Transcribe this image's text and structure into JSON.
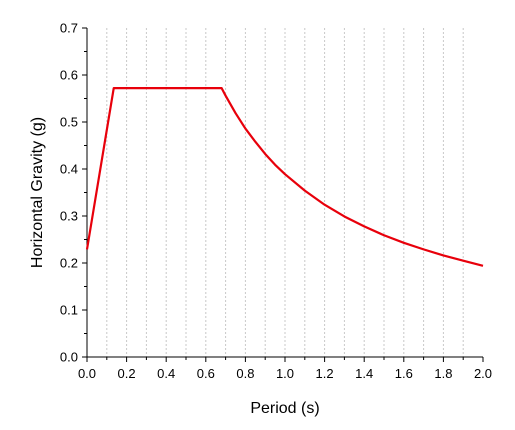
{
  "chart_data": {
    "type": "line",
    "xlabel": "Period (s)",
    "ylabel": "Horizontal Gravity (g)",
    "xlim": [
      0,
      2.0
    ],
    "ylim": [
      0,
      0.7
    ],
    "x_ticks": [
      "0.0",
      "0.2",
      "0.4",
      "0.6",
      "0.8",
      "1.0",
      "1.2",
      "1.4",
      "1.6",
      "1.8",
      "2.0"
    ],
    "y_ticks": [
      "0.0",
      "0.1",
      "0.2",
      "0.3",
      "0.4",
      "0.5",
      "0.6",
      "0.7"
    ],
    "grid": "vertical dotted at minor x ticks",
    "series": [
      {
        "color": "#e8000b",
        "x": [
          0.0,
          0.135,
          0.68,
          0.7,
          0.75,
          0.8,
          0.85,
          0.9,
          0.95,
          1.0,
          1.1,
          1.2,
          1.3,
          1.4,
          1.5,
          1.6,
          1.7,
          1.8,
          1.9,
          2.0
        ],
        "y": [
          0.229,
          0.572,
          0.572,
          0.556,
          0.519,
          0.486,
          0.458,
          0.432,
          0.409,
          0.389,
          0.354,
          0.324,
          0.299,
          0.278,
          0.259,
          0.243,
          0.229,
          0.216,
          0.205,
          0.194
        ]
      }
    ]
  }
}
